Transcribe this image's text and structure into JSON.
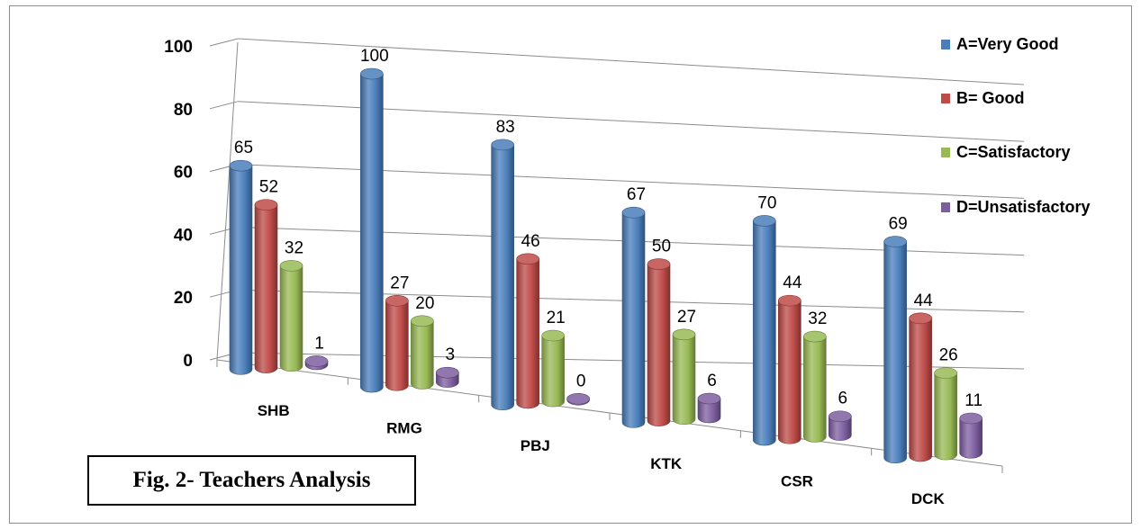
{
  "caption": "Fig. 2- Teachers Analysis",
  "chart_data": {
    "type": "bar",
    "style": "3d-cylinder",
    "categories": [
      "SHB",
      "RMG",
      "PBJ",
      "KTK",
      "CSR",
      "DCK"
    ],
    "series": [
      {
        "name": "A=Very Good",
        "color": "#4a7ebb",
        "values": [
          65,
          100,
          83,
          67,
          70,
          69
        ]
      },
      {
        "name": "B= Good",
        "color": "#be4b48",
        "values": [
          52,
          27,
          46,
          50,
          44,
          44
        ]
      },
      {
        "name": "C=Satisfactory",
        "color": "#98b954",
        "values": [
          32,
          20,
          21,
          27,
          32,
          26
        ]
      },
      {
        "name": "D=Unsatisfactory",
        "color": "#7d5fa0",
        "values": [
          1,
          3,
          0,
          6,
          6,
          11
        ]
      }
    ],
    "yticks": [
      0,
      20,
      40,
      60,
      80,
      100
    ],
    "ylim": [
      0,
      100
    ],
    "grid": true,
    "legend": "right"
  }
}
